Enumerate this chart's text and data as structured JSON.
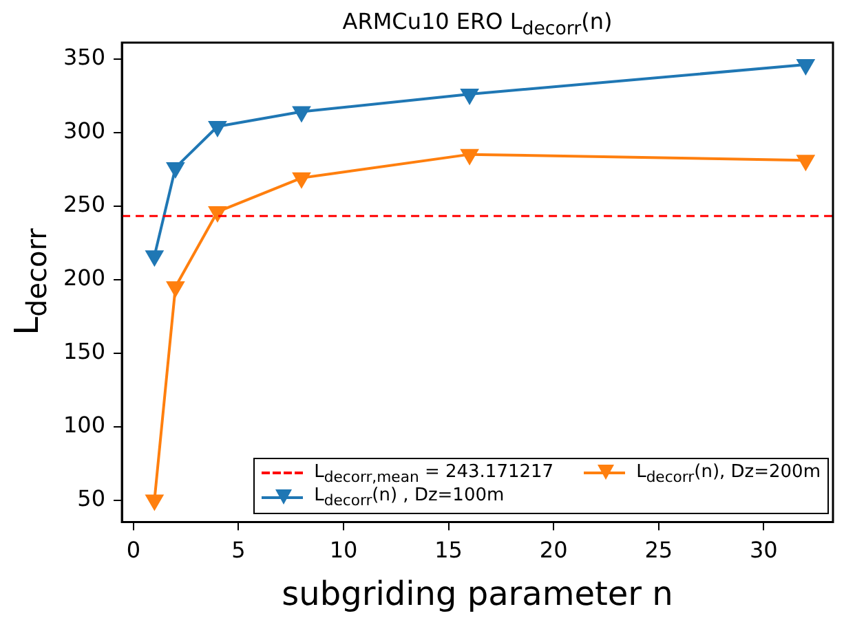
{
  "chart_data": {
    "type": "line",
    "title": "ARMCu10 ERO L$_{decorr}$(n)",
    "xlabel": "subgriding parameter n",
    "ylabel": "L$_{decorr}$",
    "x": [
      1,
      2,
      4,
      8,
      16,
      32
    ],
    "series": [
      {
        "name": "L$_{decorr}$(n) , Dz=100m",
        "color": "#1f77b4",
        "values": [
          216,
          276,
          304,
          314,
          326,
          346
        ]
      },
      {
        "name": "L$_{decorr}$(n), Dz=200m",
        "color": "#ff7f0e",
        "values": [
          50,
          195,
          246,
          269,
          285,
          281
        ]
      }
    ],
    "xlim": [
      -0.55,
      33.3
    ],
    "xticks": [
      0,
      5,
      10,
      15,
      20,
      25,
      30
    ],
    "ylim": [
      35,
      361
    ],
    "yticks": [
      50,
      100,
      150,
      200,
      250,
      300,
      350
    ],
    "ref_lines": [
      {
        "axis": "y",
        "value": 243.171217,
        "label": "L$_{decorr,mean}$ =  243.171217",
        "color": "#ff0000",
        "line_style": "dashed"
      }
    ],
    "grid": false,
    "legend": "bottom right",
    "marker": "triangle",
    "line_style": "solid"
  }
}
